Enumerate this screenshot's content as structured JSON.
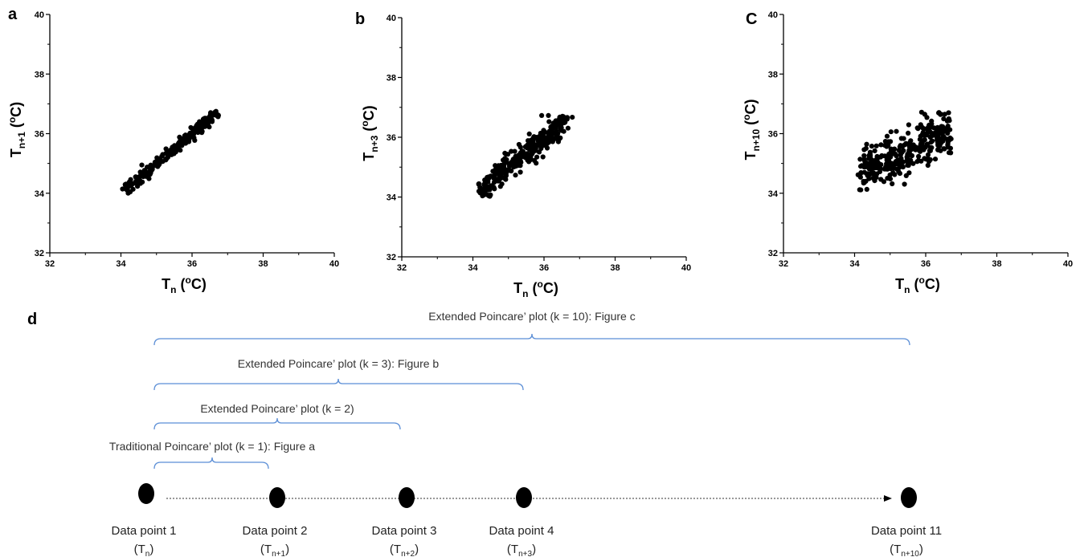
{
  "chart_data": [
    {
      "type": "scatter",
      "panel": "a",
      "xlabel": "Tn (oC)",
      "ylabel": "Tn+1 (oC)",
      "xlabel_parts": {
        "main": "T",
        "sub": "n",
        "unit_pre": " (",
        "sup": "o",
        "unit_post": "C)"
      },
      "ylabel_parts": {
        "main": "T",
        "sub": "n+1",
        "unit_pre": " (",
        "sup": "o",
        "unit_post": "C)"
      },
      "xlim": [
        32,
        40
      ],
      "ylim": [
        32,
        40
      ],
      "xticks": [
        "32",
        "34",
        "36",
        "38",
        "40"
      ],
      "yticks": [
        "32",
        "34",
        "36",
        "38",
        "40"
      ],
      "cluster": {
        "x_range": [
          34.1,
          36.7
        ],
        "slope": 1.0,
        "spread": 0.11,
        "count": 280
      },
      "grid": false
    },
    {
      "type": "scatter",
      "panel": "b",
      "xlabel": "Tn (oC)",
      "ylabel": "Tn+3 (oC)",
      "xlabel_parts": {
        "main": "T",
        "sub": "n",
        "unit_pre": " (",
        "sup": "o",
        "unit_post": "C)"
      },
      "ylabel_parts": {
        "main": "T",
        "sub": "n+3",
        "unit_pre": " (",
        "sup": "o",
        "unit_post": "C)"
      },
      "xlim": [
        32,
        40
      ],
      "ylim": [
        32,
        40
      ],
      "xticks": [
        "32",
        "34",
        "36",
        "38",
        "40"
      ],
      "yticks": [
        "32",
        "34",
        "36",
        "38",
        "40"
      ],
      "cluster": {
        "x_range": [
          34.1,
          36.7
        ],
        "slope": 0.95,
        "spread": 0.22,
        "count": 300
      },
      "grid": false
    },
    {
      "type": "scatter",
      "panel": "C",
      "xlabel": "Tn (oC)",
      "ylabel": "Tn+10 (oC)",
      "xlabel_parts": {
        "main": "T",
        "sub": "n",
        "unit_pre": " (",
        "sup": "o",
        "unit_post": "C)"
      },
      "ylabel_parts": {
        "main": "T",
        "sub": "n+10",
        "unit_pre": " (",
        "sup": "o",
        "unit_post": "C)"
      },
      "xlim": [
        32,
        40
      ],
      "ylim": [
        32,
        40
      ],
      "xticks": [
        "32",
        "34",
        "36",
        "38",
        "40"
      ],
      "yticks": [
        "32",
        "34",
        "36",
        "38",
        "40"
      ],
      "cluster": {
        "x_range": [
          34.1,
          36.7
        ],
        "slope": 0.55,
        "spread": 0.4,
        "count": 320
      },
      "grid": false
    }
  ],
  "diagram": {
    "panel": "d",
    "braces": [
      {
        "label": "Extended Poincare’ plot (k = 10): Figure c"
      },
      {
        "label": "Extended Poincare’ plot (k = 3): Figure b"
      },
      {
        "label": "Extended Poincare’ plot (k = 2)"
      },
      {
        "label": "Traditional Poincare’ plot (k = 1): Figure a"
      }
    ],
    "points": [
      {
        "label": "Data point 1",
        "sym": "T",
        "sub": "n"
      },
      {
        "label": "Data point 2",
        "sym": "T",
        "sub": "n+1"
      },
      {
        "label": "Data point 3",
        "sym": "T",
        "sub": "n+2"
      },
      {
        "label": "Data point 4",
        "sym": "T",
        "sub": "n+3"
      },
      {
        "label": "Data point 11",
        "sym": "T",
        "sub": "n+10"
      }
    ]
  }
}
